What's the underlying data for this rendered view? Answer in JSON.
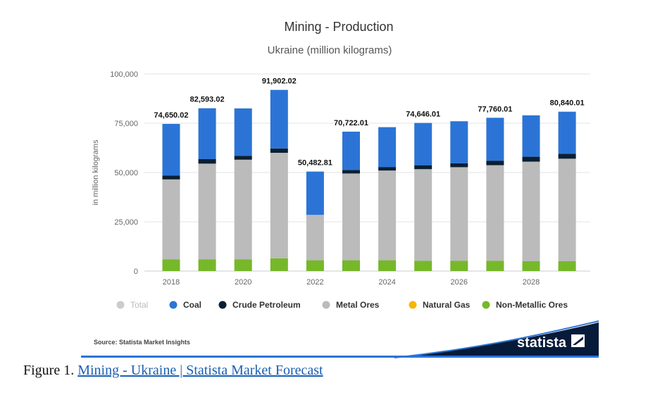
{
  "chart_data": {
    "type": "bar",
    "stacked": true,
    "title": "Mining - Production",
    "subtitle": "Ukraine (million kilograms)",
    "ylabel": "in million kilograms",
    "ylim": [
      0,
      100000
    ],
    "yticks": [
      "0",
      "25,000",
      "50,000",
      "75,000",
      "100,000"
    ],
    "categories": [
      "2018",
      "2019",
      "2020",
      "2021",
      "2022",
      "2023",
      "2024",
      "2025",
      "2026",
      "2027",
      "2028",
      "2029"
    ],
    "x_tick_labels": [
      "2018",
      "2020",
      "2022",
      "2024",
      "2026",
      "2028"
    ],
    "grid": true,
    "legend_position": "bottom",
    "series": [
      {
        "name": "Non-Metallic Ores",
        "color": "#76b82a",
        "values": [
          6000,
          6000,
          6000,
          6500,
          5500,
          5500,
          5500,
          5200,
          5200,
          5200,
          5000,
          5000
        ]
      },
      {
        "name": "Natural Gas",
        "color": "#f7b500",
        "values": [
          0,
          0,
          0,
          0,
          0,
          0,
          0,
          0,
          0,
          0,
          0,
          0
        ]
      },
      {
        "name": "Metal Ores",
        "color": "#bbbbbb",
        "values": [
          40500,
          48500,
          50500,
          53500,
          23000,
          44000,
          45500,
          46500,
          47500,
          48500,
          50500,
          52000
        ]
      },
      {
        "name": "Crude Petroleum",
        "color": "#0b1f33",
        "values": [
          2000,
          2300,
          2000,
          2200,
          0,
          1800,
          1800,
          2000,
          2000,
          2300,
          2500,
          2500
        ]
      },
      {
        "name": "Coal",
        "color": "#2b74d6",
        "values": [
          26150.02,
          25793.02,
          24000,
          29702.02,
          21982.81,
          19422.01,
          20200,
          21446.01,
          21300,
          21760.01,
          21000,
          21340.01
        ]
      }
    ],
    "totals_labels": [
      "74,650.02",
      "82,593.02",
      "",
      "91,902.02",
      "50,482.81",
      "70,722.01",
      "",
      "74,646.01",
      "",
      "77,760.01",
      "",
      "80,840.01"
    ],
    "legend": [
      {
        "label": "Total",
        "color": "#cccccc",
        "muted": true
      },
      {
        "label": "Coal",
        "color": "#2b74d6",
        "muted": false
      },
      {
        "label": "Crude Petroleum",
        "color": "#0b1f33",
        "muted": false
      },
      {
        "label": "Metal Ores",
        "color": "#bbbbbb",
        "muted": false
      },
      {
        "label": "Natural Gas",
        "color": "#f7b500",
        "muted": false
      },
      {
        "label": "Non-Metallic Ores",
        "color": "#76b82a",
        "muted": false
      }
    ]
  },
  "source": "Source: Statista Market Insights",
  "brand": "statista",
  "caption": {
    "prefix": "Figure 1. ",
    "link_text": "Mining - Ukraine | Statista Market Forecast"
  }
}
